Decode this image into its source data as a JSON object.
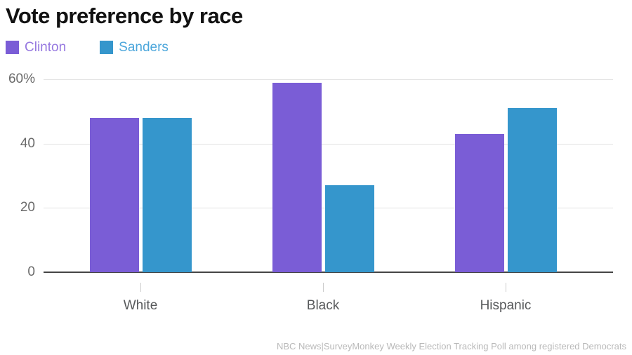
{
  "chart_data": {
    "type": "bar",
    "title": "Vote preference by race",
    "categories": [
      "White",
      "Black",
      "Hispanic"
    ],
    "series": [
      {
        "name": "Clinton",
        "bar_color": "#7A5DD6",
        "label_color": "#9678E0",
        "values": [
          48,
          59,
          43
        ]
      },
      {
        "name": "Sanders",
        "bar_color": "#3596CC",
        "label_color": "#4BA6DB",
        "values": [
          48,
          27,
          51
        ]
      }
    ],
    "ylim": [
      0,
      60
    ],
    "yticks": [
      {
        "value": 0,
        "label": "0"
      },
      {
        "value": 20,
        "label": "20"
      },
      {
        "value": 40,
        "label": "40"
      },
      {
        "value": 60,
        "label": "60%"
      }
    ],
    "grid": true,
    "legend_position": "top-left",
    "source_note": "NBC News|SurveyMonkey Weekly Election Tracking Poll among registered Democrats"
  },
  "colors": {
    "title_text": "#111111",
    "grid_line": "#E3E3E3",
    "zero_axis_line": "#454545",
    "y_axis_label": "#6B6B6B",
    "x_axis_label": "#57595B",
    "x_tick_mark": "#CCCCCC",
    "source_note_text": "#B9B9B9"
  }
}
